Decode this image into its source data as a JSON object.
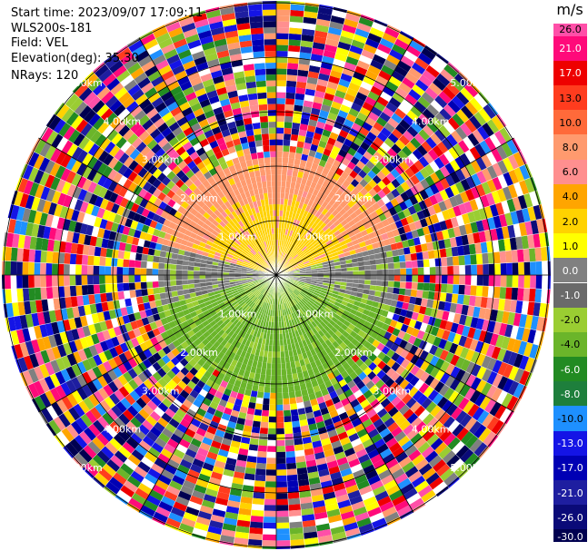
{
  "info": {
    "start_time": "Start time: 2023/09/07 17:09:11",
    "instrument": "WLS200s-181",
    "field": "Field: VEL",
    "elevation": "Elevation(deg): 35.30",
    "nrays": "NRays: 120"
  },
  "colorbar": {
    "unit": "m/s",
    "ticks": [
      "26.0",
      "21.0",
      "17.0",
      "13.0",
      "10.0",
      "8.0",
      "6.0",
      "4.0",
      "2.0",
      "1.0",
      "0.0",
      "-1.0",
      "-2.0",
      "-4.0",
      "-6.0",
      "-8.0",
      "-10.0",
      "-13.0",
      "-17.0",
      "-21.0",
      "-26.0",
      "-30.0"
    ],
    "colors": [
      "#ff4fa8",
      "#ff0a7a",
      "#ee0000",
      "#ff3c1e",
      "#ff6a3a",
      "#ff9a6e",
      "#ff8f8f",
      "#ffa500",
      "#ffd200",
      "#ffff00",
      "#808080",
      "#6a6a6a",
      "#9acd32",
      "#6bb52a",
      "#228b22",
      "#1e7f3c",
      "#1e90ff",
      "#1414e6",
      "#0000b4",
      "#1e1ea0",
      "#0a0a78",
      "#000050"
    ]
  },
  "range_labels": [
    "1.00km",
    "2.00km",
    "3.00km",
    "4.00km",
    "5.00km"
  ],
  "chart_data": {
    "type": "heatmap",
    "title": "",
    "field": "VEL",
    "units": "m/s",
    "elevation_deg": 35.3,
    "n_rays": 120,
    "range_rings_km": [
      1,
      2,
      3,
      4,
      5
    ],
    "scale": [
      26,
      21,
      17,
      13,
      10,
      8,
      6,
      4,
      2,
      1,
      0,
      -1,
      -2,
      -4,
      -6,
      -8,
      -10,
      -13,
      -17,
      -21,
      -26,
      -30
    ],
    "pattern": {
      "north_near_range_velocity_ms": 2,
      "north_outer_band_velocity_ms": 8,
      "south_near_range_velocity_ms": -4,
      "west_east_near_range_velocity_ms": 0,
      "valid_range_km": 2.2,
      "beyond_valid_range": "noise"
    }
  }
}
